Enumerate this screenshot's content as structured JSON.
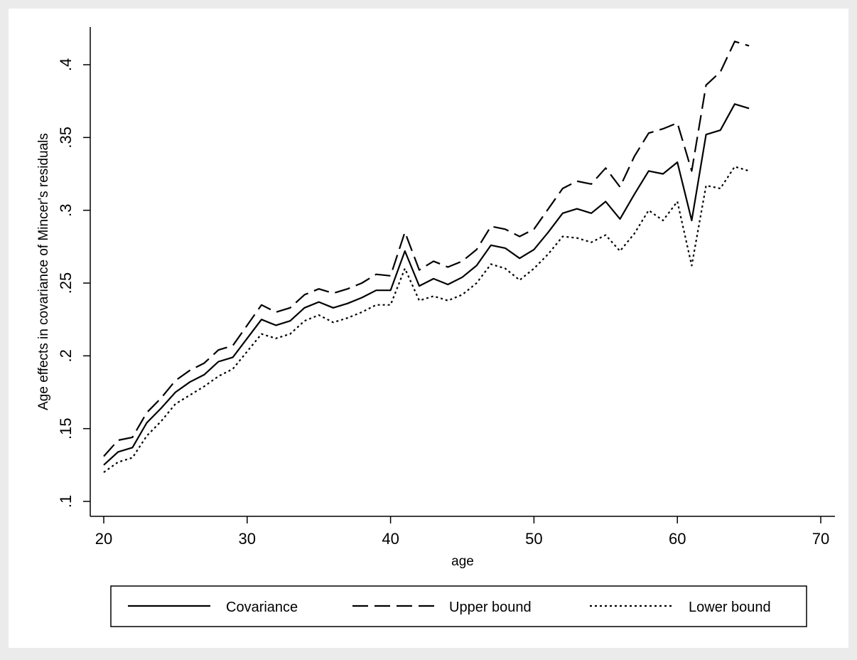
{
  "chart_data": {
    "type": "line",
    "title": "",
    "xlabel": "age",
    "ylabel": "Age effects in covariance of Mincer's residuals",
    "xlim": [
      20,
      70
    ],
    "ylim": [
      0.1,
      0.42
    ],
    "xticks": [
      20,
      30,
      40,
      50,
      60,
      70
    ],
    "xtick_labels": [
      "20",
      "30",
      "40",
      "50",
      "60",
      "70"
    ],
    "yticks": [
      0.1,
      0.15,
      0.2,
      0.25,
      0.3,
      0.35,
      0.4
    ],
    "ytick_labels": [
      ".1",
      ".15",
      ".2",
      ".25",
      ".3",
      ".35",
      ".4"
    ],
    "grid": false,
    "legend_position": "bottom",
    "x": [
      20,
      21,
      22,
      23,
      24,
      25,
      26,
      27,
      28,
      29,
      30,
      31,
      32,
      33,
      34,
      35,
      36,
      37,
      38,
      39,
      40,
      41,
      42,
      43,
      44,
      45,
      46,
      47,
      48,
      49,
      50,
      51,
      52,
      53,
      54,
      55,
      56,
      57,
      58,
      59,
      60,
      61,
      62,
      63,
      64,
      65
    ],
    "series": [
      {
        "name": "Covariance",
        "style": "solid",
        "values": [
          0.125,
          0.134,
          0.137,
          0.154,
          0.164,
          0.175,
          0.182,
          0.187,
          0.196,
          0.199,
          0.212,
          0.225,
          0.221,
          0.224,
          0.233,
          0.237,
          0.233,
          0.236,
          0.24,
          0.245,
          0.245,
          0.272,
          0.248,
          0.253,
          0.249,
          0.254,
          0.262,
          0.276,
          0.274,
          0.267,
          0.273,
          0.285,
          0.298,
          0.301,
          0.298,
          0.306,
          0.294,
          0.311,
          0.327,
          0.325,
          0.333,
          0.293,
          0.352,
          0.355,
          0.373,
          0.37
        ]
      },
      {
        "name": "Upper bound",
        "style": "dashed",
        "values": [
          0.131,
          0.142,
          0.144,
          0.161,
          0.171,
          0.183,
          0.19,
          0.195,
          0.204,
          0.207,
          0.221,
          0.235,
          0.23,
          0.233,
          0.242,
          0.246,
          0.243,
          0.246,
          0.25,
          0.256,
          0.255,
          0.285,
          0.259,
          0.265,
          0.261,
          0.265,
          0.273,
          0.289,
          0.287,
          0.282,
          0.287,
          0.301,
          0.315,
          0.32,
          0.318,
          0.329,
          0.316,
          0.337,
          0.353,
          0.356,
          0.36,
          0.327,
          0.386,
          0.395,
          0.416,
          0.413
        ]
      },
      {
        "name": "Lower bound",
        "style": "dotted",
        "values": [
          0.12,
          0.127,
          0.13,
          0.145,
          0.155,
          0.167,
          0.173,
          0.179,
          0.186,
          0.191,
          0.203,
          0.215,
          0.212,
          0.215,
          0.224,
          0.228,
          0.223,
          0.226,
          0.23,
          0.235,
          0.235,
          0.26,
          0.238,
          0.241,
          0.238,
          0.242,
          0.25,
          0.263,
          0.26,
          0.252,
          0.26,
          0.27,
          0.282,
          0.281,
          0.278,
          0.283,
          0.272,
          0.284,
          0.3,
          0.293,
          0.306,
          0.262,
          0.317,
          0.315,
          0.33,
          0.327
        ]
      }
    ]
  }
}
